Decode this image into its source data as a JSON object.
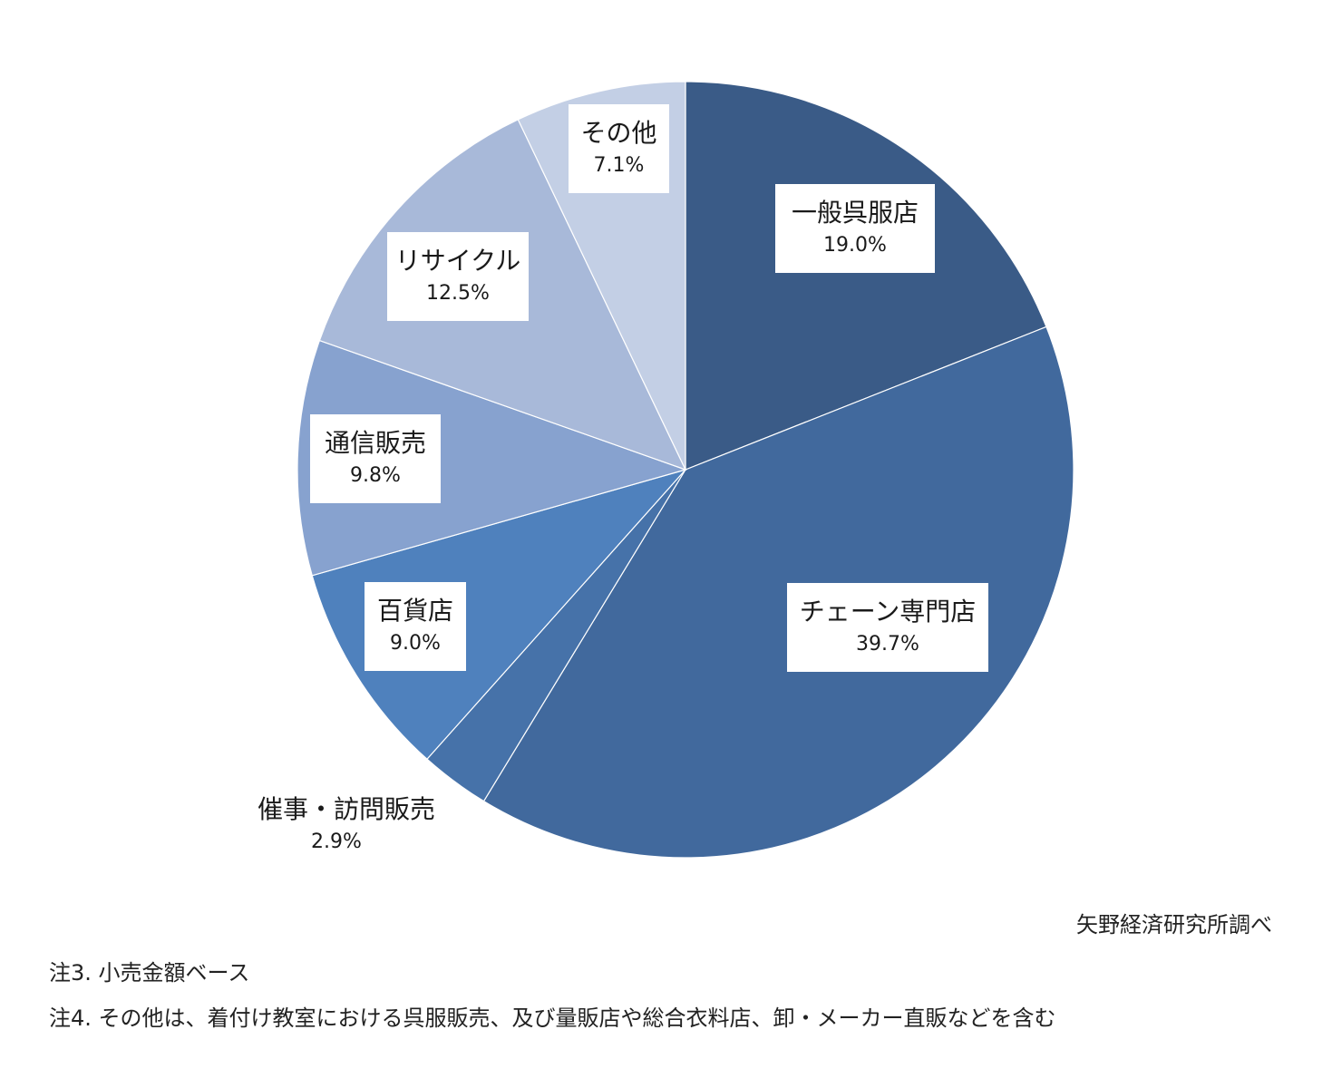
{
  "chart_data": {
    "type": "pie",
    "start_angle_deg": 0,
    "direction": "clockwise",
    "slices": [
      {
        "label": "一般呉服店",
        "value": 19.0,
        "display": "19.0%",
        "color": "#3a5b87"
      },
      {
        "label": "チェーン専門店",
        "value": 39.7,
        "display": "39.7%",
        "color": "#41699d"
      },
      {
        "label": "催事・訪問販売",
        "value": 2.9,
        "display": "2.9%",
        "color": "#4672a9"
      },
      {
        "label": "百貨店",
        "value": 9.0,
        "display": "9.0%",
        "color": "#4f81bd"
      },
      {
        "label": "通信販売",
        "value": 9.8,
        "display": "9.8%",
        "color": "#87a2cf"
      },
      {
        "label": "リサイクル",
        "value": 12.5,
        "display": "12.5%",
        "color": "#a8b9d9"
      },
      {
        "label": "その他",
        "value": 7.1,
        "display": "7.1%",
        "color": "#c3cfe5"
      }
    ]
  },
  "source": "矢野経済研究所調べ",
  "notes": [
    "注3. 小売金額ベース",
    "注4. その他は、着付け教室における呉服販売、及び量販店や総合衣料店、卸・メーカー直販などを含む"
  ]
}
